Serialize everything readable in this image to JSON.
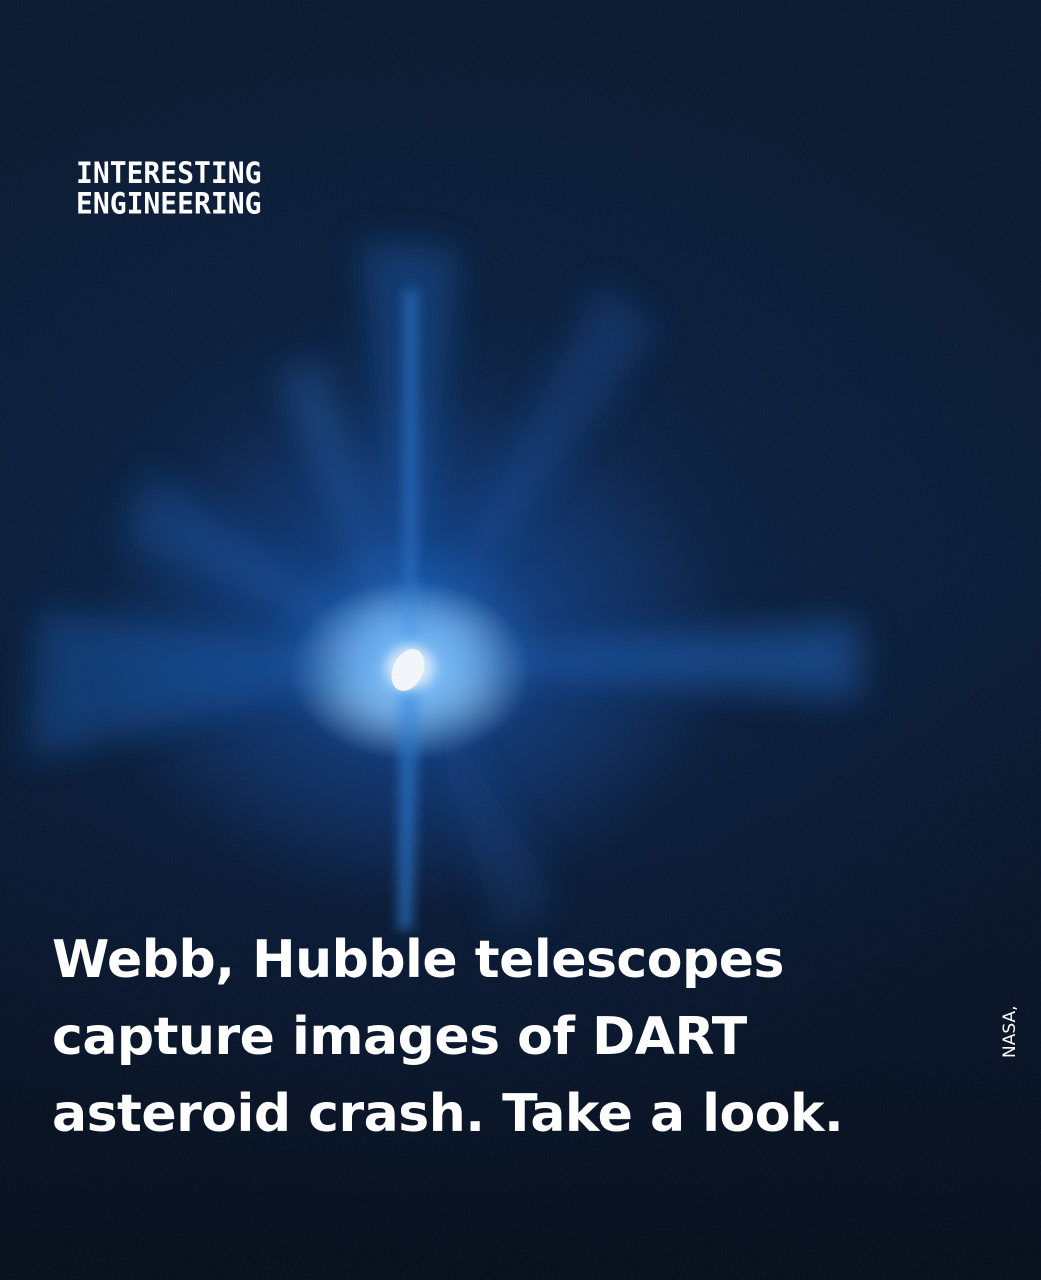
{
  "image": {
    "subject": "asteroid-impact-ejecta"
  },
  "logo": {
    "line1": "INTERESTING",
    "line2": "ENGINEERING"
  },
  "headline": {
    "line1": "Webb, Hubble telescopes",
    "line2": "capture images of DART",
    "line3": "asteroid crash. Take a look."
  },
  "credit": "NASA,",
  "colors": {
    "accent_underline": "#1877c4",
    "text": "#ffffff",
    "background": "#040a16"
  }
}
